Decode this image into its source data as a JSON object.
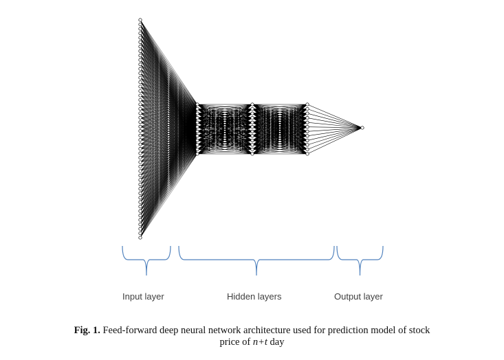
{
  "diagram": {
    "layers": [
      {
        "role": "input",
        "nodes": 50
      },
      {
        "role": "hidden",
        "nodes": 12
      },
      {
        "role": "hidden",
        "nodes": 12
      },
      {
        "role": "hidden",
        "nodes": 12
      },
      {
        "role": "output",
        "nodes": 1
      }
    ],
    "stroke_color": "#000000",
    "brace_color": "#4f81bd"
  },
  "labels": {
    "input_layer": "Input layer",
    "hidden_layers": "Hidden layers",
    "output_layer": "Output layer"
  },
  "caption": {
    "fig_label": "Fig. 1.",
    "line1_rest": " Feed-forward deep neural network architecture used for prediction model of stock",
    "line2_prefix": "price of ",
    "line2_var": "n+t",
    "line2_suffix": " day"
  }
}
